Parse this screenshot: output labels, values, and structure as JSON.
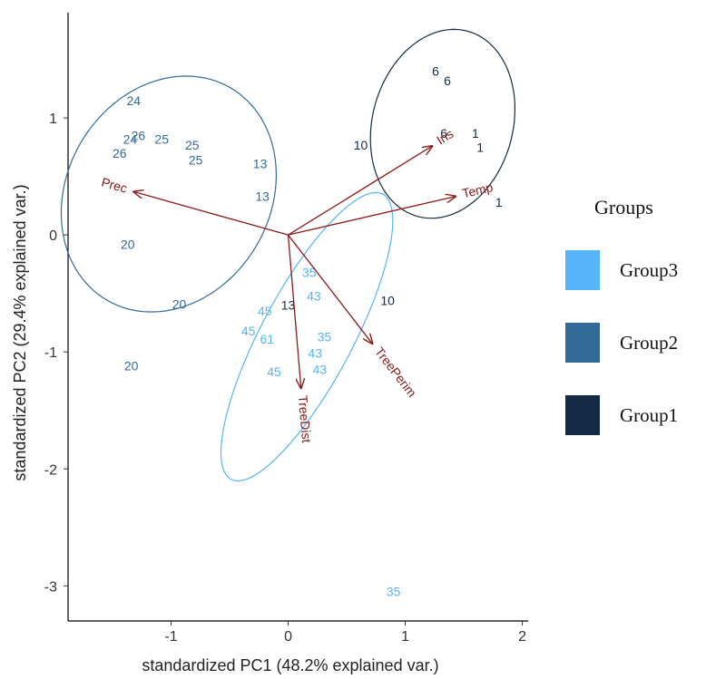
{
  "chart_data": {
    "type": "scatter",
    "xlabel": "standardized PC1 (48.2% explained var.)",
    "ylabel": "standardized PC2 (29.4% explained var.)",
    "xlim": [
      -1.88,
      2.05
    ],
    "ylim": [
      -3.3,
      1.9
    ],
    "xticks": [
      {
        "value": -1,
        "label": "-1"
      },
      {
        "value": 0,
        "label": "0"
      },
      {
        "value": 1,
        "label": "1"
      },
      {
        "value": 2,
        "label": "2"
      }
    ],
    "yticks": [
      {
        "value": 1,
        "label": "1"
      },
      {
        "value": 0,
        "label": "0"
      },
      {
        "value": -1,
        "label": "-1"
      },
      {
        "value": -2,
        "label": "-2"
      },
      {
        "value": -3,
        "label": "-3"
      }
    ],
    "grid": false,
    "legend": {
      "title": "Groups",
      "placement": "right",
      "entries": [
        {
          "group": "Group3",
          "label": "Group3",
          "color": "#56B4F9"
        },
        {
          "group": "Group2",
          "label": "Group2",
          "color": "#336A98"
        },
        {
          "group": "Group1",
          "label": "Group1",
          "color": "#132B43"
        }
      ]
    },
    "arrow_color": "#8B1A1A",
    "points": [
      {
        "x": -1.32,
        "y": 1.15,
        "label": "24",
        "group": "Group2"
      },
      {
        "x": -1.28,
        "y": 0.85,
        "label": "26",
        "group": "Group2"
      },
      {
        "x": -1.35,
        "y": 0.82,
        "label": "24",
        "group": "Group2"
      },
      {
        "x": -1.44,
        "y": 0.7,
        "label": "26",
        "group": "Group2"
      },
      {
        "x": -1.08,
        "y": 0.82,
        "label": "25",
        "group": "Group2"
      },
      {
        "x": -0.82,
        "y": 0.77,
        "label": "25",
        "group": "Group2"
      },
      {
        "x": -0.79,
        "y": 0.64,
        "label": "25",
        "group": "Group2"
      },
      {
        "x": -0.24,
        "y": 0.61,
        "label": "13",
        "group": "Group2"
      },
      {
        "x": -0.22,
        "y": 0.33,
        "label": "13",
        "group": "Group2"
      },
      {
        "x": -1.37,
        "y": -0.08,
        "label": "20",
        "group": "Group2"
      },
      {
        "x": -0.93,
        "y": -0.59,
        "label": "20",
        "group": "Group2"
      },
      {
        "x": -1.34,
        "y": -1.12,
        "label": "20",
        "group": "Group2"
      },
      {
        "x": 0.18,
        "y": -0.32,
        "label": "35",
        "group": "Group3"
      },
      {
        "x": 0.22,
        "y": -0.52,
        "label": "43",
        "group": "Group3"
      },
      {
        "x": -0.2,
        "y": -0.65,
        "label": "45",
        "group": "Group3"
      },
      {
        "x": -0.34,
        "y": -0.82,
        "label": "45",
        "group": "Group3"
      },
      {
        "x": -0.18,
        "y": -0.89,
        "label": "61",
        "group": "Group3"
      },
      {
        "x": 0.31,
        "y": -0.87,
        "label": "35",
        "group": "Group3"
      },
      {
        "x": 0.23,
        "y": -1.01,
        "label": "43",
        "group": "Group3"
      },
      {
        "x": 0.27,
        "y": -1.15,
        "label": "43",
        "group": "Group3"
      },
      {
        "x": -0.12,
        "y": -1.17,
        "label": "45",
        "group": "Group3"
      },
      {
        "x": 0.9,
        "y": -3.05,
        "label": "35",
        "group": "Group3"
      },
      {
        "x": 0.0,
        "y": -0.6,
        "label": "13",
        "group": "Group1"
      },
      {
        "x": 0.85,
        "y": -0.56,
        "label": "10",
        "group": "Group1"
      },
      {
        "x": 0.62,
        "y": 0.77,
        "label": "10",
        "group": "Group1"
      },
      {
        "x": 1.26,
        "y": 1.4,
        "label": "6",
        "group": "Group1"
      },
      {
        "x": 1.36,
        "y": 1.32,
        "label": "6",
        "group": "Group1"
      },
      {
        "x": 1.33,
        "y": 0.87,
        "label": "6",
        "group": "Group1"
      },
      {
        "x": 1.6,
        "y": 0.87,
        "label": "1",
        "group": "Group1"
      },
      {
        "x": 1.64,
        "y": 0.75,
        "label": "1",
        "group": "Group1"
      },
      {
        "x": 1.8,
        "y": 0.28,
        "label": "1",
        "group": "Group1"
      }
    ],
    "ellipses": [
      {
        "group": "Group2",
        "cx": -1.02,
        "cy": 0.35,
        "rx": 1.05,
        "ry": 0.87,
        "angle": 60
      },
      {
        "group": "Group3",
        "cx": 0.16,
        "cy": -0.87,
        "rx": 1.38,
        "ry": 0.39,
        "angle": 62
      },
      {
        "group": "Group1",
        "cx": 1.32,
        "cy": 0.95,
        "rx": 0.82,
        "ry": 0.6,
        "angle": 75
      }
    ],
    "loadings": [
      {
        "name": "Prec",
        "x": -1.32,
        "y": 0.37
      },
      {
        "name": "Ins",
        "x": 1.23,
        "y": 0.76
      },
      {
        "name": "Temp",
        "x": 1.43,
        "y": 0.33
      },
      {
        "name": "TreePerim",
        "x": 0.72,
        "y": -0.93
      },
      {
        "name": "TreeDist",
        "x": 0.11,
        "y": -1.31
      }
    ]
  }
}
